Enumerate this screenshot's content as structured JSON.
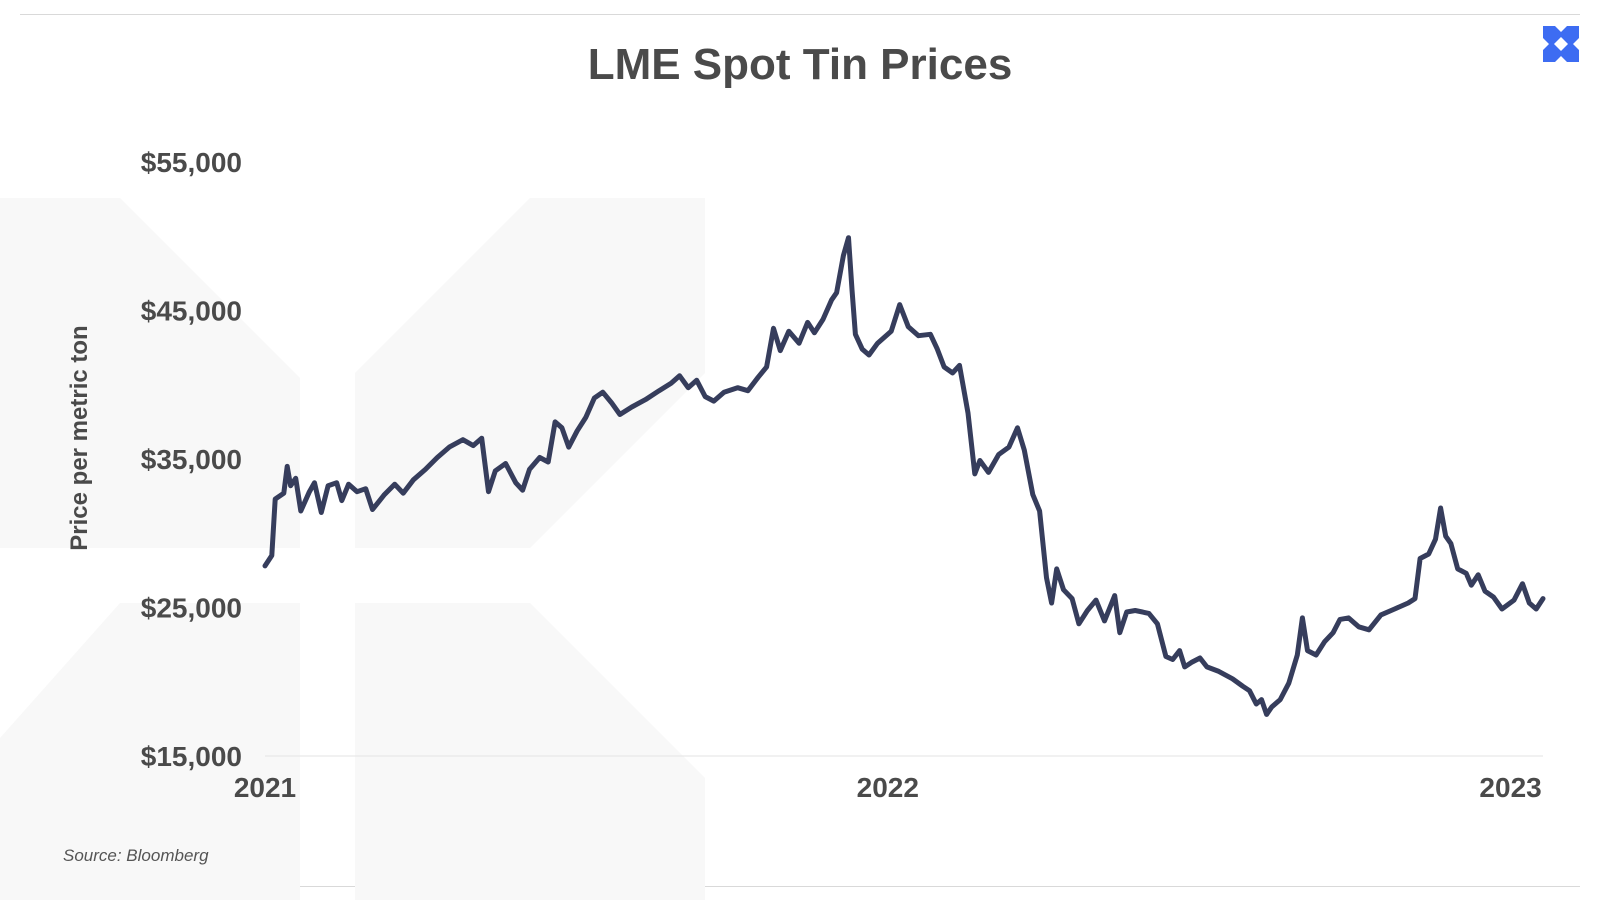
{
  "brand": {
    "logo_icon": "x-logo-icon",
    "logo_color": "#3d6cf2"
  },
  "chart_data": {
    "type": "line",
    "title": "LME Spot Tin Prices",
    "ylabel": "Price per metric ton",
    "source": "Source: Bloomberg",
    "x_range": [
      "2021-01-01",
      "2023-01-20"
    ],
    "ylim": [
      15000,
      55000
    ],
    "y_ticks": [
      {
        "value": 55000,
        "label": "$55,000"
      },
      {
        "value": 45000,
        "label": "$45,000"
      },
      {
        "value": 35000,
        "label": "$35,000"
      },
      {
        "value": 25000,
        "label": "$25,000"
      },
      {
        "value": 15000,
        "label": "$15,000"
      }
    ],
    "x_ticks": [
      {
        "value": "2021-01-01",
        "label": "2021"
      },
      {
        "value": "2022-01-01",
        "label": "2022"
      },
      {
        "value": "2023-01-01",
        "label": "2023"
      }
    ],
    "grid": false,
    "line_color": "#363d5c",
    "series": [
      {
        "points": [
          [
            "2021-01-01",
            27800
          ],
          [
            "2021-01-05",
            28500
          ],
          [
            "2021-01-07",
            32300
          ],
          [
            "2021-01-12",
            32700
          ],
          [
            "2021-01-14",
            34500
          ],
          [
            "2021-01-16",
            33200
          ],
          [
            "2021-01-19",
            33700
          ],
          [
            "2021-01-22",
            31500
          ],
          [
            "2021-01-27",
            32800
          ],
          [
            "2021-01-30",
            33400
          ],
          [
            "2021-02-03",
            31400
          ],
          [
            "2021-02-07",
            33200
          ],
          [
            "2021-02-12",
            33400
          ],
          [
            "2021-02-15",
            32200
          ],
          [
            "2021-02-19",
            33300
          ],
          [
            "2021-02-24",
            32800
          ],
          [
            "2021-03-01",
            33000
          ],
          [
            "2021-03-05",
            31600
          ],
          [
            "2021-03-12",
            32600
          ],
          [
            "2021-03-18",
            33300
          ],
          [
            "2021-03-23",
            32700
          ],
          [
            "2021-03-29",
            33600
          ],
          [
            "2021-04-05",
            34300
          ],
          [
            "2021-04-12",
            35100
          ],
          [
            "2021-04-19",
            35800
          ],
          [
            "2021-04-27",
            36300
          ],
          [
            "2021-05-03",
            35900
          ],
          [
            "2021-05-08",
            36400
          ],
          [
            "2021-05-12",
            32800
          ],
          [
            "2021-05-16",
            34200
          ],
          [
            "2021-05-22",
            34700
          ],
          [
            "2021-05-28",
            33400
          ],
          [
            "2021-06-01",
            32900
          ],
          [
            "2021-06-05",
            34300
          ],
          [
            "2021-06-11",
            35100
          ],
          [
            "2021-06-16",
            34800
          ],
          [
            "2021-06-20",
            37500
          ],
          [
            "2021-06-24",
            37100
          ],
          [
            "2021-06-28",
            35800
          ],
          [
            "2021-07-03",
            36900
          ],
          [
            "2021-07-08",
            37800
          ],
          [
            "2021-07-13",
            39100
          ],
          [
            "2021-07-18",
            39500
          ],
          [
            "2021-07-23",
            38800
          ],
          [
            "2021-07-28",
            38000
          ],
          [
            "2021-08-04",
            38500
          ],
          [
            "2021-08-12",
            39000
          ],
          [
            "2021-08-20",
            39600
          ],
          [
            "2021-08-27",
            40100
          ],
          [
            "2021-09-01",
            40600
          ],
          [
            "2021-09-06",
            39800
          ],
          [
            "2021-09-11",
            40300
          ],
          [
            "2021-09-16",
            39200
          ],
          [
            "2021-09-21",
            38900
          ],
          [
            "2021-09-27",
            39500
          ],
          [
            "2021-10-05",
            39800
          ],
          [
            "2021-10-11",
            39600
          ],
          [
            "2021-10-17",
            40500
          ],
          [
            "2021-10-22",
            41200
          ],
          [
            "2021-10-26",
            43800
          ],
          [
            "2021-10-30",
            42300
          ],
          [
            "2021-11-04",
            43600
          ],
          [
            "2021-11-10",
            42800
          ],
          [
            "2021-11-15",
            44200
          ],
          [
            "2021-11-19",
            43500
          ],
          [
            "2021-11-24",
            44400
          ],
          [
            "2021-11-29",
            45700
          ],
          [
            "2021-12-02",
            46200
          ],
          [
            "2021-12-06",
            48700
          ],
          [
            "2021-12-09",
            49900
          ],
          [
            "2021-12-11",
            46400
          ],
          [
            "2021-12-13",
            43400
          ],
          [
            "2021-12-17",
            42400
          ],
          [
            "2021-12-21",
            42000
          ],
          [
            "2021-12-26",
            42800
          ],
          [
            "2022-01-03",
            43600
          ],
          [
            "2022-01-08",
            45400
          ],
          [
            "2022-01-13",
            43900
          ],
          [
            "2022-01-19",
            43300
          ],
          [
            "2022-01-26",
            43400
          ],
          [
            "2022-01-30",
            42400
          ],
          [
            "2022-02-03",
            41200
          ],
          [
            "2022-02-08",
            40800
          ],
          [
            "2022-02-12",
            41300
          ],
          [
            "2022-02-17",
            38100
          ],
          [
            "2022-02-21",
            34000
          ],
          [
            "2022-02-24",
            34900
          ],
          [
            "2022-03-01",
            34100
          ],
          [
            "2022-03-07",
            35300
          ],
          [
            "2022-03-13",
            35800
          ],
          [
            "2022-03-18",
            37100
          ],
          [
            "2022-03-22",
            35600
          ],
          [
            "2022-03-27",
            32600
          ],
          [
            "2022-03-31",
            31500
          ],
          [
            "2022-04-04",
            27000
          ],
          [
            "2022-04-07",
            25300
          ],
          [
            "2022-04-10",
            27600
          ],
          [
            "2022-04-14",
            26200
          ],
          [
            "2022-04-19",
            25600
          ],
          [
            "2022-04-23",
            23900
          ],
          [
            "2022-04-28",
            24800
          ],
          [
            "2022-05-03",
            25500
          ],
          [
            "2022-05-08",
            24100
          ],
          [
            "2022-05-14",
            25800
          ],
          [
            "2022-05-17",
            23300
          ],
          [
            "2022-05-21",
            24700
          ],
          [
            "2022-05-26",
            24800
          ],
          [
            "2022-06-03",
            24600
          ],
          [
            "2022-06-08",
            23900
          ],
          [
            "2022-06-13",
            21700
          ],
          [
            "2022-06-17",
            21500
          ],
          [
            "2022-06-21",
            22100
          ],
          [
            "2022-06-24",
            21000
          ],
          [
            "2022-06-28",
            21300
          ],
          [
            "2022-07-03",
            21600
          ],
          [
            "2022-07-07",
            21000
          ],
          [
            "2022-07-14",
            20700
          ],
          [
            "2022-07-22",
            20200
          ],
          [
            "2022-07-28",
            19700
          ],
          [
            "2022-08-01",
            19400
          ],
          [
            "2022-08-05",
            18500
          ],
          [
            "2022-08-08",
            18800
          ],
          [
            "2022-08-11",
            17800
          ],
          [
            "2022-08-14",
            18300
          ],
          [
            "2022-08-19",
            18800
          ],
          [
            "2022-08-24",
            19900
          ],
          [
            "2022-08-29",
            21800
          ],
          [
            "2022-09-01",
            24300
          ],
          [
            "2022-09-04",
            22100
          ],
          [
            "2022-09-09",
            21800
          ],
          [
            "2022-09-14",
            22700
          ],
          [
            "2022-09-19",
            23300
          ],
          [
            "2022-09-23",
            24200
          ],
          [
            "2022-09-28",
            24300
          ],
          [
            "2022-10-04",
            23700
          ],
          [
            "2022-10-10",
            23500
          ],
          [
            "2022-10-17",
            24500
          ],
          [
            "2022-10-25",
            24900
          ],
          [
            "2022-11-02",
            25300
          ],
          [
            "2022-11-06",
            25600
          ],
          [
            "2022-11-09",
            28300
          ],
          [
            "2022-11-14",
            28600
          ],
          [
            "2022-11-18",
            29600
          ],
          [
            "2022-11-21",
            31700
          ],
          [
            "2022-11-24",
            29800
          ],
          [
            "2022-11-27",
            29300
          ],
          [
            "2022-12-01",
            27600
          ],
          [
            "2022-12-06",
            27300
          ],
          [
            "2022-12-09",
            26500
          ],
          [
            "2022-12-13",
            27200
          ],
          [
            "2022-12-17",
            26100
          ],
          [
            "2022-12-22",
            25700
          ],
          [
            "2022-12-27",
            24900
          ],
          [
            "2023-01-03",
            25500
          ],
          [
            "2023-01-08",
            26600
          ],
          [
            "2023-01-12",
            25300
          ],
          [
            "2023-01-16",
            24900
          ],
          [
            "2023-01-20",
            25600
          ]
        ]
      }
    ]
  }
}
